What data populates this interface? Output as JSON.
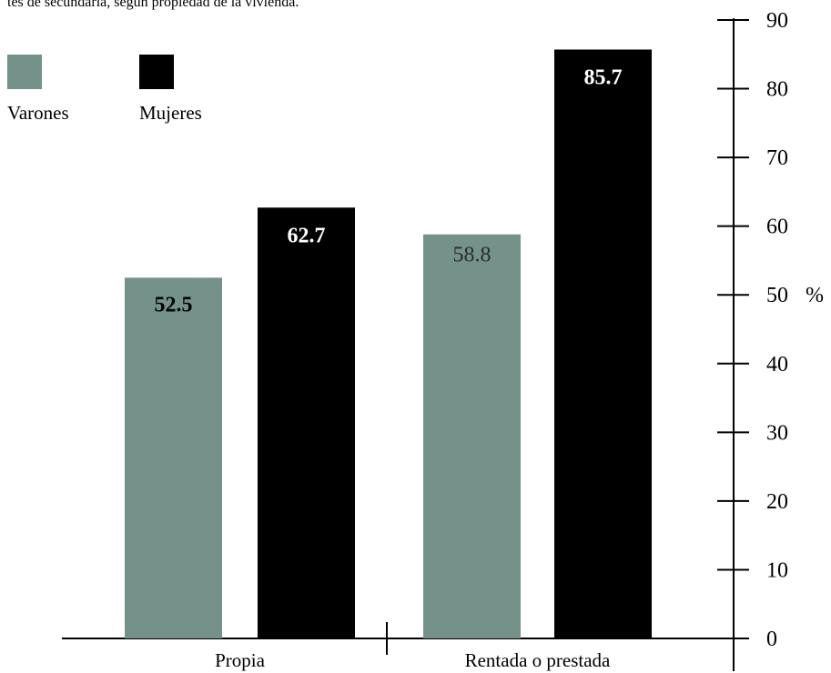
{
  "caption": "tes de secundaria, según propiedad de la vivienda.",
  "colors": {
    "varones": "#749289",
    "mujeres": "#000000",
    "axis": "#000000"
  },
  "chart_data": {
    "type": "bar",
    "categories": [
      "Propia",
      "Rentada o prestada"
    ],
    "series": [
      {
        "name": "Varones",
        "values": [
          52.5,
          58.8
        ],
        "labels": [
          "52.5",
          "58.8"
        ]
      },
      {
        "name": "Mujeres",
        "values": [
          62.7,
          85.7
        ],
        "labels": [
          "62.7",
          "85.7"
        ]
      }
    ],
    "ylim": [
      0,
      90
    ],
    "yticks": [
      "0",
      "10",
      "20",
      "30",
      "40",
      "50",
      "60",
      "70",
      "80",
      "90"
    ],
    "ylabel": "%",
    "legend_position": "top-left",
    "grid": false
  }
}
